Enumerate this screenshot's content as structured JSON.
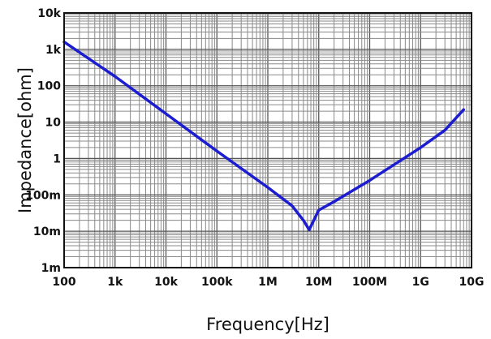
{
  "chart_data": {
    "type": "line",
    "title": "",
    "xlabel": "Frequency[Hz]",
    "ylabel": "Impedance[ohm]",
    "xscale": "log",
    "yscale": "log",
    "xlim": [
      100,
      10000000000
    ],
    "ylim": [
      0.001,
      10000
    ],
    "grid": true,
    "legend": "none",
    "x_ticks": [
      {
        "value": 100,
        "label": "100"
      },
      {
        "value": 1000,
        "label": "1k"
      },
      {
        "value": 10000,
        "label": "10k"
      },
      {
        "value": 100000,
        "label": "100k"
      },
      {
        "value": 1000000,
        "label": "1M"
      },
      {
        "value": 10000000,
        "label": "10M"
      },
      {
        "value": 100000000,
        "label": "100M"
      },
      {
        "value": 1000000000,
        "label": "1G"
      },
      {
        "value": 10000000000,
        "label": "10G"
      }
    ],
    "y_ticks": [
      {
        "value": 0.001,
        "label": "1m"
      },
      {
        "value": 0.01,
        "label": "10m"
      },
      {
        "value": 0.1,
        "label": "100m"
      },
      {
        "value": 1,
        "label": "1"
      },
      {
        "value": 10,
        "label": "10"
      },
      {
        "value": 100,
        "label": "100"
      },
      {
        "value": 1000,
        "label": "1k"
      },
      {
        "value": 10000,
        "label": "10k"
      }
    ],
    "series": [
      {
        "color": "#1c1cd0",
        "points": [
          [
            100,
            1600
          ],
          [
            1000,
            180
          ],
          [
            10000,
            17
          ],
          [
            100000,
            1.6
          ],
          [
            1000000,
            0.16
          ],
          [
            3000000,
            0.05
          ],
          [
            5000000,
            0.02
          ],
          [
            6500000,
            0.011
          ],
          [
            8000000,
            0.02
          ],
          [
            10000000,
            0.038
          ],
          [
            20000000,
            0.065
          ],
          [
            100000000,
            0.25
          ],
          [
            1000000000,
            2
          ],
          [
            3000000000,
            6
          ],
          [
            7000000000,
            22
          ]
        ]
      }
    ]
  }
}
